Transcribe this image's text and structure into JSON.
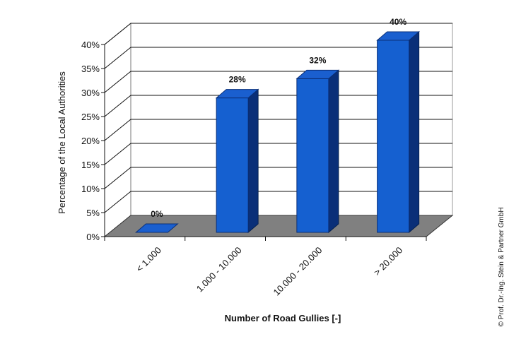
{
  "chart_data": {
    "type": "bar",
    "categories": [
      "< 1.000",
      "1.000 - 10.000",
      "10.000 - 20.000",
      "> 20.000"
    ],
    "values": [
      0,
      28,
      32,
      40
    ],
    "value_labels": [
      "0%",
      "28%",
      "32%",
      "40%"
    ],
    "ylim": [
      0,
      40
    ],
    "yticks": [
      "0%",
      "5%",
      "10%",
      "15%",
      "20%",
      "25%",
      "30%",
      "35%",
      "40%"
    ],
    "xlabel": "Number of Road Gullies [-]",
    "ylabel": "Percentage of the Local Authorities",
    "grid": true,
    "style": "3d",
    "bar_color": "#1560d0",
    "floor_color": "#808080"
  },
  "copyright": "© Prof. Dr.-Ing. Stein & Partner GmbH"
}
